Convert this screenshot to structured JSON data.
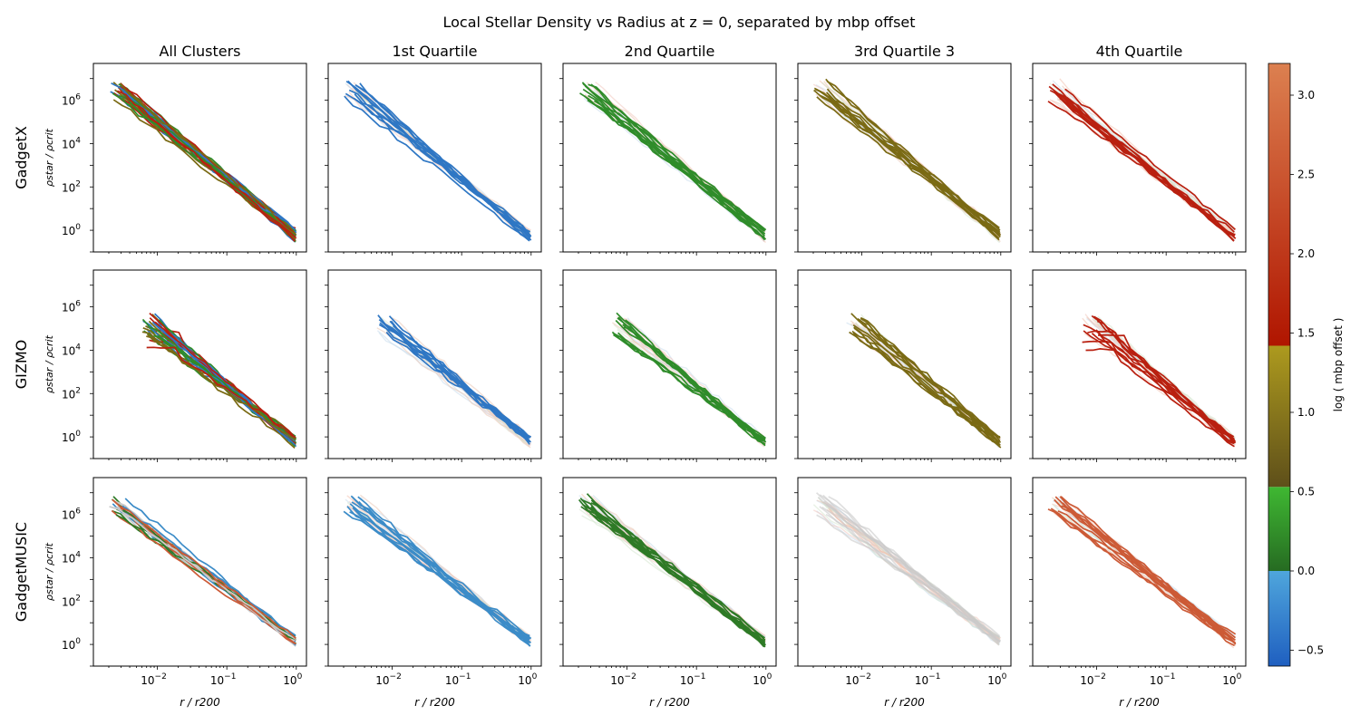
{
  "figure": {
    "title": "Local Stellar Density vs Radius at z = 0, separated by mbp offset"
  },
  "chart_data": {
    "type": "line",
    "x_scale": "log",
    "y_scale": "log",
    "xlim": [
      0.0012,
      1.4
    ],
    "ylim": [
      0.1,
      50000000
    ],
    "xlabel": "r / r200",
    "ylabel": "ρstar / ρcrit",
    "x_ticks": [
      {
        "value": 0.01,
        "base": "10",
        "exp": "−2"
      },
      {
        "value": 0.1,
        "base": "10",
        "exp": "−1"
      },
      {
        "value": 1,
        "base": "10",
        "exp": "0"
      }
    ],
    "y_ticks": [
      {
        "value": 1,
        "base": "10",
        "exp": "0"
      },
      {
        "value": 100,
        "base": "10",
        "exp": "2"
      },
      {
        "value": 10000,
        "base": "10",
        "exp": "4"
      },
      {
        "value": 1000000,
        "base": "10",
        "exp": "6"
      }
    ],
    "columns": [
      "All Clusters",
      "1st Quartile",
      "2nd Quartile",
      "3rd Quartile 3",
      "4th Quartile"
    ],
    "rows": [
      "GadgetX",
      "GIZMO",
      "GadgetMUSIC"
    ],
    "quartile_colors": [
      "#2f77c4",
      "#2f8c2a",
      "#7a6a14",
      "#b92010"
    ],
    "music_quartile_colors": [
      "#3c8cc8",
      "#2e7a26",
      "#c9c9c9",
      "#cc5a36"
    ],
    "colorbar": {
      "label": "log ( mbp offset )",
      "range": [
        -0.6,
        3.2
      ],
      "ticks": [
        "−0.5",
        "0.0",
        "0.5",
        "1.0",
        "1.5",
        "2.0",
        "2.5",
        "3.0"
      ],
      "tick_values": [
        -0.5,
        0.0,
        0.5,
        1.0,
        1.5,
        2.0,
        2.5,
        3.0
      ],
      "segments": [
        {
          "from": -0.6,
          "to": 0.0,
          "c0": "#1f5fc0",
          "c1": "#4fa6dc"
        },
        {
          "from": 0.0,
          "to": 0.53,
          "c0": "#266b22",
          "c1": "#3fb832"
        },
        {
          "from": 0.53,
          "to": 1.42,
          "c0": "#5e4f1a",
          "c1": "#ad9a1e"
        },
        {
          "from": 1.42,
          "to": 3.2,
          "c0": "#b01500",
          "c1": "#dc8050"
        }
      ]
    },
    "series": [
      {
        "name": "GadgetX",
        "x_range": [
          0.002,
          1.0
        ],
        "y_start": 3000000,
        "y_end": 0.6
      },
      {
        "name": "GIZMO",
        "x_range": [
          0.006,
          1.0
        ],
        "y_start": 150000,
        "y_end": 0.6
      },
      {
        "name": "GadgetMUSIC",
        "x_range": [
          0.002,
          1.0
        ],
        "y_start": 3000000,
        "y_end": 1.5
      }
    ]
  }
}
